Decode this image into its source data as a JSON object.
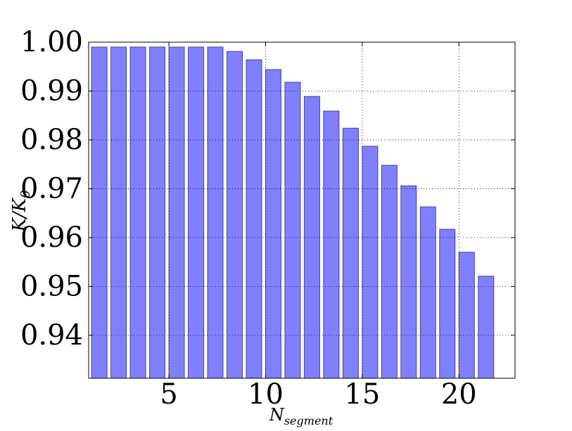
{
  "chart_data": {
    "type": "bar",
    "x_label": "N",
    "x_label_sub": "segment",
    "y_label": "K/K",
    "y_label_sub": "0",
    "x": [
      1,
      2,
      3,
      4,
      5,
      6,
      7,
      8,
      9,
      10,
      11,
      12,
      13,
      14,
      15,
      16,
      17,
      18,
      19,
      20,
      21
    ],
    "values": [
      0.999,
      0.999,
      0.999,
      0.999,
      0.999,
      0.999,
      0.999,
      0.9981,
      0.9964,
      0.9944,
      0.9918,
      0.9889,
      0.9859,
      0.9824,
      0.9787,
      0.9748,
      0.9706,
      0.9663,
      0.9617,
      0.957,
      0.9521
    ],
    "bar_width": 0.8,
    "color": "#8080ff",
    "edge_color": "#44449a",
    "xlim": [
      0.85,
      22.9
    ],
    "xticks": [
      5,
      10,
      15,
      20
    ],
    "ylim": [
      0.9312,
      1.0
    ],
    "yticks": [
      0.94,
      0.95,
      0.96,
      0.97,
      0.98,
      0.99,
      {
        "value": 1,
        "label": "1.00"
      }
    ],
    "grid": true
  }
}
